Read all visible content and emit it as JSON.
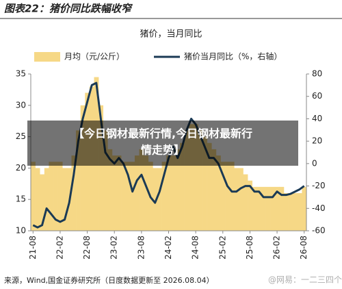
{
  "header": {
    "title": "图表22：猪价同比跌幅收窄"
  },
  "chart_data": {
    "type": "combo",
    "title": "猪价，当月同比",
    "categories": [
      "21-08",
      null,
      null,
      null,
      null,
      null,
      "22-02",
      null,
      null,
      null,
      null,
      null,
      "22-08",
      null,
      null,
      null,
      null,
      null,
      "23-02",
      null,
      null,
      null,
      null,
      null,
      "23-08",
      null,
      null,
      null,
      null,
      null,
      "24-02",
      null,
      null,
      null,
      null,
      null,
      "24-08",
      null,
      null,
      null,
      null,
      null,
      "25-02",
      null,
      null,
      null,
      null,
      null,
      "25-08",
      null,
      null,
      null,
      null,
      null,
      "26-02",
      null,
      null,
      null,
      null,
      null,
      "26-08"
    ],
    "series": [
      {
        "name": "月均（元/公斤）",
        "type": "bar",
        "color": "#f6d886",
        "values": [
          21,
          20,
          19,
          20,
          21,
          21,
          21,
          20,
          20,
          22,
          26,
          30,
          32,
          33,
          34.5,
          30,
          26,
          23,
          22,
          22,
          21,
          21,
          21,
          22,
          23,
          22,
          21,
          20,
          20,
          21,
          22,
          22,
          23,
          24,
          26,
          27,
          27,
          26,
          25,
          24,
          23,
          22,
          21,
          21,
          21,
          20,
          20,
          19,
          18,
          17,
          17,
          17,
          17,
          17,
          17,
          17,
          16,
          16,
          16,
          16,
          17
        ]
      },
      {
        "name": "猪价当月同比（%，右轴）",
        "type": "line",
        "axis": "y2",
        "color": "#1b3a55",
        "values": [
          -55,
          -57,
          -55,
          -40,
          -45,
          -50,
          -52,
          -50,
          -35,
          -10,
          20,
          40,
          55,
          70,
          72,
          40,
          10,
          4,
          0,
          5,
          0,
          -10,
          -25,
          -15,
          -10,
          -20,
          -30,
          -35,
          -25,
          -10,
          5,
          15,
          5,
          15,
          30,
          40,
          35,
          25,
          15,
          5,
          5,
          0,
          -10,
          -20,
          -25,
          -25,
          -22,
          -20,
          -20,
          -25,
          -25,
          -30,
          -30,
          -30,
          -25,
          -28,
          -28,
          -27,
          -25,
          -23,
          -20
        ]
      }
    ],
    "ylim": [
      10,
      35
    ],
    "yticks": [
      10,
      15,
      20,
      25,
      30,
      35
    ],
    "y2lim": [
      -60,
      80
    ],
    "y2ticks": [
      -60,
      -40,
      -20,
      0,
      20,
      40,
      60,
      80
    ],
    "grid": false,
    "legend": "top"
  },
  "footer": {
    "source": "来源，Wind,国金证券研究所（日度数据更新至 2026.08.04）"
  },
  "overlay": {
    "lines": [
      "【今日钢材最新行情,今日钢材最新行",
      "情走势】"
    ],
    "watermark": "@网易：一二三四个"
  }
}
